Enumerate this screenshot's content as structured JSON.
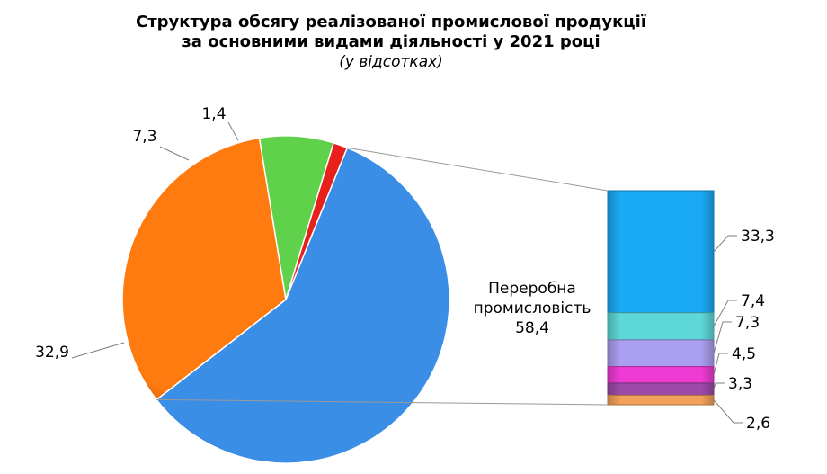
{
  "chart_data": {
    "type": "pie",
    "title_line1": "Структура обсягу реалізованої промислової продукції",
    "title_line2": "за основними видами діяльності у 2021 році",
    "subtitle": "(у відсотках)",
    "slices": [
      {
        "value": 58.4,
        "label_line1": "Переробна",
        "label_line2": "промисловість",
        "label_value": "58,4",
        "color": "#3a8ee6"
      },
      {
        "value": 32.9,
        "label_value": "32,9",
        "color": "#ff7a0f"
      },
      {
        "value": 7.3,
        "label_value": "7,3",
        "color": "#5fd14a"
      },
      {
        "value": 1.4,
        "label_value": "1,4",
        "color": "#e8201c"
      }
    ],
    "breakdown": {
      "parent": "Переробна промисловість",
      "segments": [
        {
          "value": 33.3,
          "label": "33,3",
          "color": "#1aaaf5"
        },
        {
          "value": 7.4,
          "label": "7,4",
          "color": "#5ed8d6"
        },
        {
          "value": 7.3,
          "label": "7,3",
          "color": "#aa9ff0"
        },
        {
          "value": 4.5,
          "label": "4,5",
          "color": "#ee3bd4"
        },
        {
          "value": 3.3,
          "label": "3,3",
          "color": "#9c4aa8"
        },
        {
          "value": 2.6,
          "label": "2,6",
          "color": "#f2a05a"
        }
      ]
    }
  }
}
